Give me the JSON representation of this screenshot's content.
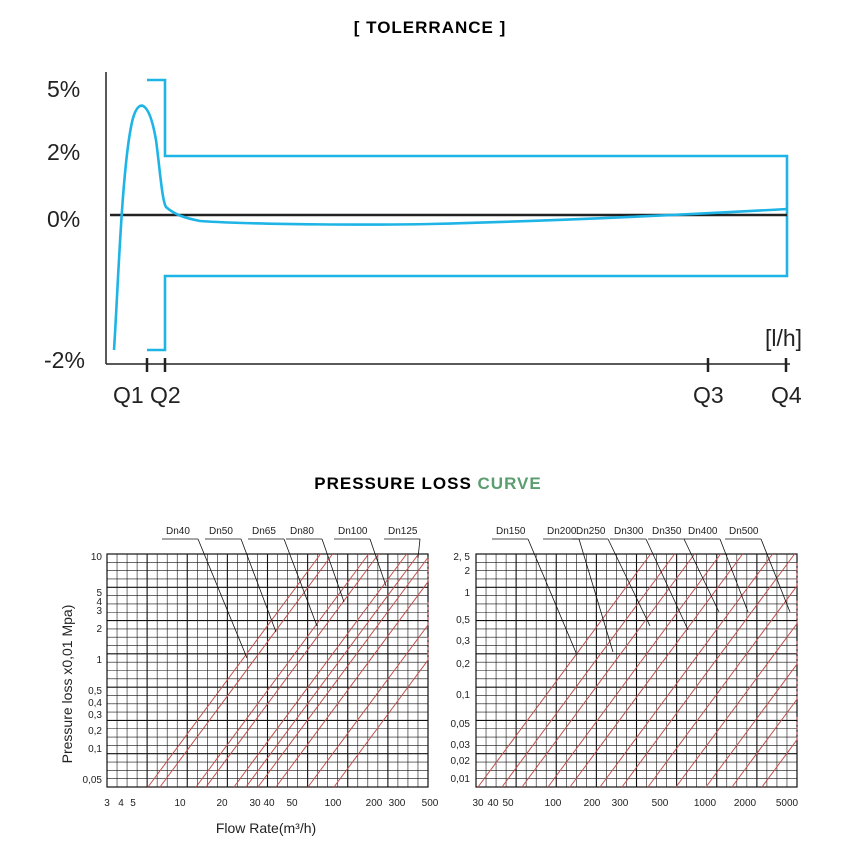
{
  "colors": {
    "tolerance_curve": "#1eb4e6",
    "axis": "#222222",
    "grid": "#111111",
    "pressure_curve": "#c0504d",
    "accent_green": "#5a9e6f"
  },
  "tolerance": {
    "title": "[ TOLERRANCE ]",
    "unit": "[l/h]",
    "y_ticks": [
      "5%",
      "2%",
      "0%",
      "-2%"
    ],
    "q_labels": [
      "Q1",
      "Q2",
      "Q3",
      "Q4"
    ]
  },
  "pressure": {
    "title_main": "PRESSURE LOSS ",
    "title_accent": "CURVE",
    "ylabel": "Pressure loss x0,01 Mpa)",
    "xlabel": "Flow Rate(m³/h)",
    "left": {
      "y_ticks": [
        "10",
        "5",
        "4",
        "3",
        "2",
        "1",
        "0,5",
        "0,4",
        "0,3",
        "0,2",
        "0,1",
        "0,05"
      ],
      "x_ticks": [
        "3",
        "4",
        "5",
        "10",
        "20",
        "30",
        "40",
        "50",
        "100",
        "200",
        "300",
        "500"
      ],
      "dn_labels": [
        "Dn40",
        "Dn50",
        "Dn65",
        "Dn80",
        "Dn100",
        "Dn125"
      ]
    },
    "right": {
      "y_ticks": [
        "2, 5",
        "2",
        "1",
        "0,5",
        "0,3",
        "0,2",
        "0,1",
        "0,05",
        "0,03",
        "0,02",
        "0,01"
      ],
      "x_ticks": [
        "30",
        "40",
        "50",
        "100",
        "200",
        "300",
        "500",
        "1000",
        "2000",
        "5000"
      ],
      "dn_labels": [
        "Dn150",
        "Dn200",
        "Dn250",
        "Dn300",
        "Dn350",
        "Dn400",
        "Dn500"
      ]
    }
  }
}
